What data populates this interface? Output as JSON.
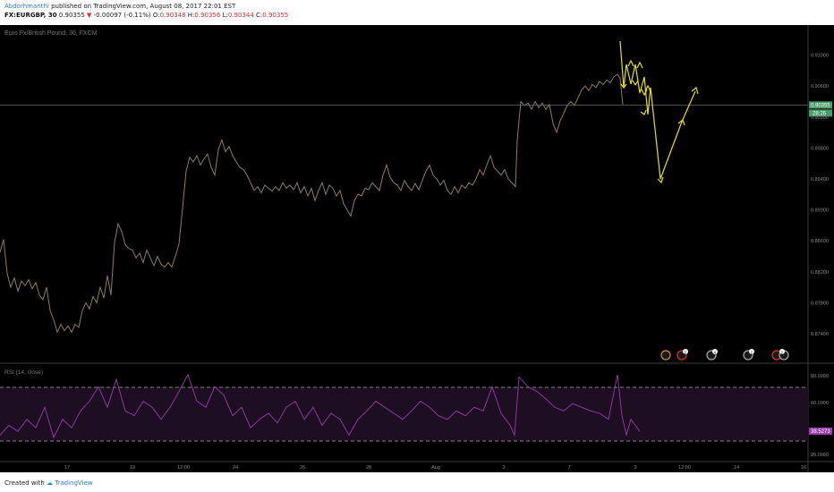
{
  "header": {
    "author": "Abdorhmanthi",
    "published": "published on TradingView.com, August 08, 2017 22:01 EST",
    "symbol": "FX:EURGBP, 30",
    "price": "0.90355",
    "change_arrow": "▼",
    "change": "-0.00097 (-0.11%)",
    "o_label": "O:",
    "o_value": "0.90348",
    "h_label": "H:",
    "h_value": "0.90356",
    "l_label": "L:",
    "l_value": "0.90344",
    "c_label": "C:",
    "c_value": "0.90355"
  },
  "chart_data": {
    "type": "line",
    "title": "Euro Fx/British Pound, 30, FXCM",
    "x_tick_labels": [
      "17",
      "19",
      "12:00",
      "24",
      "26",
      "28",
      "Aug",
      "3",
      "7",
      "9",
      "12:00",
      "14",
      "16"
    ],
    "y_tick_labels": [
      "0.91000",
      "0.90600",
      "0.90200",
      "0.89800",
      "0.89400",
      "0.89000",
      "0.88600",
      "0.88200",
      "0.87800",
      "0.87400"
    ],
    "ylim": [
      0.8725,
      0.9118
    ],
    "current_price_label": "0.90355",
    "countdown_label": "28:26",
    "price_series": [
      [
        0,
        0.8845
      ],
      [
        4,
        0.8862
      ],
      [
        8,
        0.8818
      ],
      [
        12,
        0.88
      ],
      [
        16,
        0.8812
      ],
      [
        20,
        0.8795
      ],
      [
        24,
        0.8808
      ],
      [
        28,
        0.8802
      ],
      [
        32,
        0.881
      ],
      [
        36,
        0.8798
      ],
      [
        40,
        0.8806
      ],
      [
        44,
        0.879
      ],
      [
        48,
        0.8784
      ],
      [
        52,
        0.88
      ],
      [
        56,
        0.877
      ],
      [
        60,
        0.8758
      ],
      [
        64,
        0.8742
      ],
      [
        68,
        0.8752
      ],
      [
        72,
        0.8744
      ],
      [
        76,
        0.875
      ],
      [
        80,
        0.8742
      ],
      [
        84,
        0.8752
      ],
      [
        88,
        0.8748
      ],
      [
        92,
        0.877
      ],
      [
        96,
        0.878
      ],
      [
        100,
        0.8772
      ],
      [
        104,
        0.8788
      ],
      [
        108,
        0.878
      ],
      [
        112,
        0.88
      ],
      [
        116,
        0.8786
      ],
      [
        120,
        0.8815
      ],
      [
        124,
        0.879
      ],
      [
        128,
        0.8858
      ],
      [
        132,
        0.8882
      ],
      [
        136,
        0.8872
      ],
      [
        140,
        0.8855
      ],
      [
        144,
        0.885
      ],
      [
        148,
        0.8848
      ],
      [
        152,
        0.8838
      ],
      [
        156,
        0.8844
      ],
      [
        160,
        0.8832
      ],
      [
        164,
        0.8848
      ],
      [
        168,
        0.8838
      ],
      [
        172,
        0.8828
      ],
      [
        176,
        0.884
      ],
      [
        180,
        0.883
      ],
      [
        184,
        0.8826
      ],
      [
        188,
        0.8832
      ],
      [
        192,
        0.8826
      ],
      [
        196,
        0.884
      ],
      [
        200,
        0.8856
      ],
      [
        204,
        0.8902
      ],
      [
        208,
        0.895
      ],
      [
        212,
        0.8968
      ],
      [
        216,
        0.8962
      ],
      [
        220,
        0.897
      ],
      [
        224,
        0.8958
      ],
      [
        228,
        0.8966
      ],
      [
        232,
        0.8972
      ],
      [
        236,
        0.8955
      ],
      [
        240,
        0.8945
      ],
      [
        244,
        0.8978
      ],
      [
        248,
        0.899
      ],
      [
        252,
        0.8975
      ],
      [
        256,
        0.8982
      ],
      [
        260,
        0.897
      ],
      [
        264,
        0.8962
      ],
      [
        268,
        0.8955
      ],
      [
        272,
        0.8952
      ],
      [
        276,
        0.8945
      ],
      [
        280,
        0.8935
      ],
      [
        284,
        0.8925
      ],
      [
        288,
        0.893
      ],
      [
        292,
        0.8922
      ],
      [
        296,
        0.8932
      ],
      [
        300,
        0.8928
      ],
      [
        304,
        0.8924
      ],
      [
        308,
        0.893
      ],
      [
        312,
        0.8925
      ],
      [
        316,
        0.8935
      ],
      [
        320,
        0.8928
      ],
      [
        324,
        0.8932
      ],
      [
        328,
        0.8926
      ],
      [
        332,
        0.8935
      ],
      [
        336,
        0.8922
      ],
      [
        340,
        0.893
      ],
      [
        344,
        0.8918
      ],
      [
        348,
        0.8928
      ],
      [
        352,
        0.8912
      ],
      [
        356,
        0.8925
      ],
      [
        360,
        0.8935
      ],
      [
        364,
        0.892
      ],
      [
        368,
        0.8932
      ],
      [
        372,
        0.8928
      ],
      [
        376,
        0.8918
      ],
      [
        380,
        0.8925
      ],
      [
        384,
        0.8908
      ],
      [
        388,
        0.89
      ],
      [
        392,
        0.8892
      ],
      [
        396,
        0.8912
      ],
      [
        400,
        0.892
      ],
      [
        404,
        0.8918
      ],
      [
        408,
        0.8928
      ],
      [
        412,
        0.8926
      ],
      [
        416,
        0.8935
      ],
      [
        420,
        0.893
      ],
      [
        424,
        0.8925
      ],
      [
        428,
        0.8945
      ],
      [
        432,
        0.8958
      ],
      [
        436,
        0.8942
      ],
      [
        440,
        0.8935
      ],
      [
        444,
        0.8932
      ],
      [
        448,
        0.8925
      ],
      [
        452,
        0.8938
      ],
      [
        456,
        0.893
      ],
      [
        460,
        0.8925
      ],
      [
        464,
        0.8934
      ],
      [
        468,
        0.8926
      ],
      [
        472,
        0.8938
      ],
      [
        476,
        0.895
      ],
      [
        480,
        0.8958
      ],
      [
        484,
        0.8945
      ],
      [
        488,
        0.894
      ],
      [
        492,
        0.8932
      ],
      [
        496,
        0.8938
      ],
      [
        500,
        0.8925
      ],
      [
        504,
        0.892
      ],
      [
        508,
        0.893
      ],
      [
        512,
        0.8922
      ],
      [
        516,
        0.8932
      ],
      [
        520,
        0.8928
      ],
      [
        524,
        0.8935
      ],
      [
        528,
        0.8932
      ],
      [
        532,
        0.894
      ],
      [
        536,
        0.8952
      ],
      [
        540,
        0.8945
      ],
      [
        544,
        0.8958
      ],
      [
        548,
        0.897
      ],
      [
        552,
        0.8955
      ],
      [
        556,
        0.895
      ],
      [
        560,
        0.8945
      ],
      [
        564,
        0.8952
      ],
      [
        568,
        0.894
      ],
      [
        572,
        0.8935
      ],
      [
        576,
        0.893
      ],
      [
        578,
        0.899
      ],
      [
        582,
        0.904
      ],
      [
        586,
        0.9035
      ],
      [
        590,
        0.9038
      ],
      [
        594,
        0.903
      ],
      [
        598,
        0.904
      ],
      [
        602,
        0.9032
      ],
      [
        606,
        0.9038
      ],
      [
        610,
        0.903
      ],
      [
        614,
        0.9036
      ],
      [
        618,
        0.9012
      ],
      [
        622,
        0.9
      ],
      [
        626,
        0.9015
      ],
      [
        630,
        0.9025
      ],
      [
        634,
        0.9035
      ],
      [
        638,
        0.904
      ],
      [
        642,
        0.9035
      ],
      [
        646,
        0.9045
      ],
      [
        650,
        0.9055
      ],
      [
        654,
        0.906
      ],
      [
        658,
        0.9054
      ],
      [
        662,
        0.9062
      ],
      [
        666,
        0.9058
      ],
      [
        670,
        0.9066
      ],
      [
        674,
        0.9062
      ],
      [
        678,
        0.9068
      ],
      [
        682,
        0.9064
      ],
      [
        686,
        0.9072
      ],
      [
        690,
        0.9075
      ],
      [
        693,
        0.907
      ],
      [
        696,
        0.9036
      ]
    ],
    "rsi": {
      "label": "RSI (14, close)",
      "tick_labels": [
        "80.0000",
        "60.0000",
        "20.0000"
      ],
      "upper_band": 70,
      "lower_band": 30,
      "current_label": "38.5273",
      "series": [
        [
          0,
          32
        ],
        [
          10,
          40
        ],
        [
          20,
          35
        ],
        [
          30,
          45
        ],
        [
          40,
          38
        ],
        [
          50,
          55
        ],
        [
          60,
          30
        ],
        [
          70,
          45
        ],
        [
          80,
          38
        ],
        [
          90,
          52
        ],
        [
          100,
          60
        ],
        [
          110,
          72
        ],
        [
          120,
          55
        ],
        [
          130,
          78
        ],
        [
          140,
          52
        ],
        [
          150,
          48
        ],
        [
          160,
          60
        ],
        [
          170,
          55
        ],
        [
          180,
          45
        ],
        [
          190,
          55
        ],
        [
          200,
          68
        ],
        [
          210,
          82
        ],
        [
          220,
          60
        ],
        [
          230,
          55
        ],
        [
          240,
          72
        ],
        [
          250,
          65
        ],
        [
          260,
          48
        ],
        [
          270,
          55
        ],
        [
          280,
          38
        ],
        [
          290,
          45
        ],
        [
          300,
          50
        ],
        [
          310,
          42
        ],
        [
          320,
          55
        ],
        [
          330,
          60
        ],
        [
          340,
          45
        ],
        [
          350,
          55
        ],
        [
          360,
          40
        ],
        [
          370,
          50
        ],
        [
          380,
          45
        ],
        [
          390,
          32
        ],
        [
          400,
          45
        ],
        [
          410,
          52
        ],
        [
          420,
          60
        ],
        [
          430,
          55
        ],
        [
          440,
          50
        ],
        [
          450,
          45
        ],
        [
          460,
          52
        ],
        [
          470,
          60
        ],
        [
          480,
          55
        ],
        [
          490,
          48
        ],
        [
          500,
          45
        ],
        [
          510,
          52
        ],
        [
          520,
          48
        ],
        [
          530,
          55
        ],
        [
          540,
          52
        ],
        [
          550,
          72
        ],
        [
          560,
          50
        ],
        [
          570,
          40
        ],
        [
          575,
          32
        ],
        [
          580,
          80
        ],
        [
          590,
          72
        ],
        [
          600,
          68
        ],
        [
          610,
          62
        ],
        [
          620,
          55
        ],
        [
          630,
          52
        ],
        [
          640,
          58
        ],
        [
          650,
          55
        ],
        [
          660,
          52
        ],
        [
          670,
          50
        ],
        [
          680,
          45
        ],
        [
          690,
          82
        ],
        [
          695,
          48
        ],
        [
          700,
          32
        ],
        [
          705,
          45
        ],
        [
          710,
          40
        ],
        [
          715,
          35
        ]
      ]
    }
  },
  "markers": [
    "event-circle",
    "event-circle",
    "event-circle",
    "event-circle",
    "event-circle",
    "event-circle"
  ],
  "marker_labels": [
    "2",
    "4",
    "2",
    "2"
  ],
  "footer": {
    "created": "Created with",
    "brand": "TradingView"
  }
}
